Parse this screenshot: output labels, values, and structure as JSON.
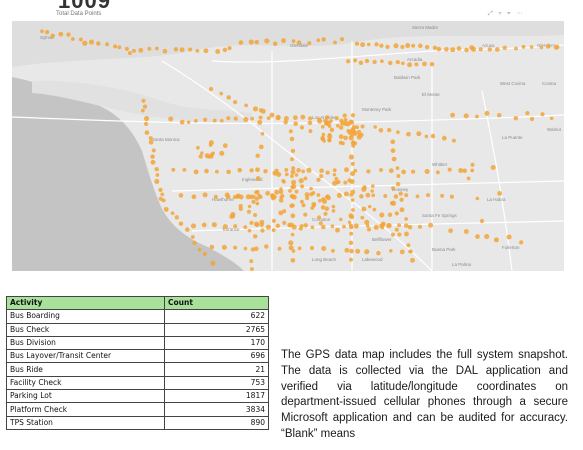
{
  "header": {
    "total_value": "1009",
    "subtitle": "Total Data Points",
    "toolbar_icons": [
      "expand-icon",
      "filter-icon",
      "pin-icon",
      "more-icon"
    ]
  },
  "map": {
    "basemap_color": "#e8e8e8",
    "water_color": "#c4c4c4",
    "point_color": "#f2a43a",
    "labels": [
      {
        "name": "label-sylmar",
        "text": "Sylmar"
      },
      {
        "name": "label-sierra-madre",
        "text": "Sierra Madre"
      },
      {
        "name": "label-glendale",
        "text": "Glendale"
      },
      {
        "name": "label-azusa",
        "text": "Azusa"
      },
      {
        "name": "label-glendora",
        "text": "Glendora"
      },
      {
        "name": "label-arcadia",
        "text": "Arcadia"
      },
      {
        "name": "label-baldwin-park",
        "text": "Baldwin Park"
      },
      {
        "name": "label-west-covina",
        "text": "West Covina"
      },
      {
        "name": "label-covina",
        "text": "Covina"
      },
      {
        "name": "label-los-angeles",
        "text": "Los Angeles"
      },
      {
        "name": "label-el-monte",
        "text": "El Monte"
      },
      {
        "name": "label-monterey-park",
        "text": "Monterey Park"
      },
      {
        "name": "label-walnut",
        "text": "Walnut"
      },
      {
        "name": "label-la-puente",
        "text": "La Puente"
      },
      {
        "name": "label-whittier",
        "text": "Whittier"
      },
      {
        "name": "label-downey",
        "text": "Downey"
      },
      {
        "name": "label-la-habra",
        "text": "La Habra"
      },
      {
        "name": "label-inglewood",
        "text": "Inglewood"
      },
      {
        "name": "label-compton",
        "text": "Compton"
      },
      {
        "name": "label-bellflower",
        "text": "Bellflower"
      },
      {
        "name": "label-buena-park",
        "text": "Buena Park"
      },
      {
        "name": "label-fullerton",
        "text": "Fullerton"
      },
      {
        "name": "label-torrance",
        "text": "Torrance"
      },
      {
        "name": "label-long-beach",
        "text": "Long Beach"
      },
      {
        "name": "label-lakewood",
        "text": "Lakewood"
      },
      {
        "name": "label-santa-fe-springs",
        "text": "Santa Fe Springs"
      },
      {
        "name": "label-hawthorne",
        "text": "Hawthorne"
      },
      {
        "name": "label-santa-monica",
        "text": "Santa Monica"
      },
      {
        "name": "label-la-palma",
        "text": "La Palma"
      }
    ]
  },
  "table": {
    "headers": {
      "activity": "Activity",
      "count": "Count"
    },
    "header_color": "#a8e29a",
    "rows": [
      {
        "activity": "Bus Boarding",
        "count": "622"
      },
      {
        "activity": "Bus Check",
        "count": "2765"
      },
      {
        "activity": "Bus Division",
        "count": "170"
      },
      {
        "activity": "Bus Layover/Transit Center",
        "count": "696"
      },
      {
        "activity": "Bus Ride",
        "count": "21"
      },
      {
        "activity": "Facility Check",
        "count": "753"
      },
      {
        "activity": "Parking Lot",
        "count": "1817"
      },
      {
        "activity": "Platform Check",
        "count": "3834"
      },
      {
        "activity": "TPS Station",
        "count": "890"
      }
    ]
  },
  "description": "The GPS data map includes the full system snapshot. The data is collected via the DAL application and verified via latitude/longitude coordinates on department-issued cellular phones through a secure Microsoft application and can be audited for accuracy. “Blank” means"
}
